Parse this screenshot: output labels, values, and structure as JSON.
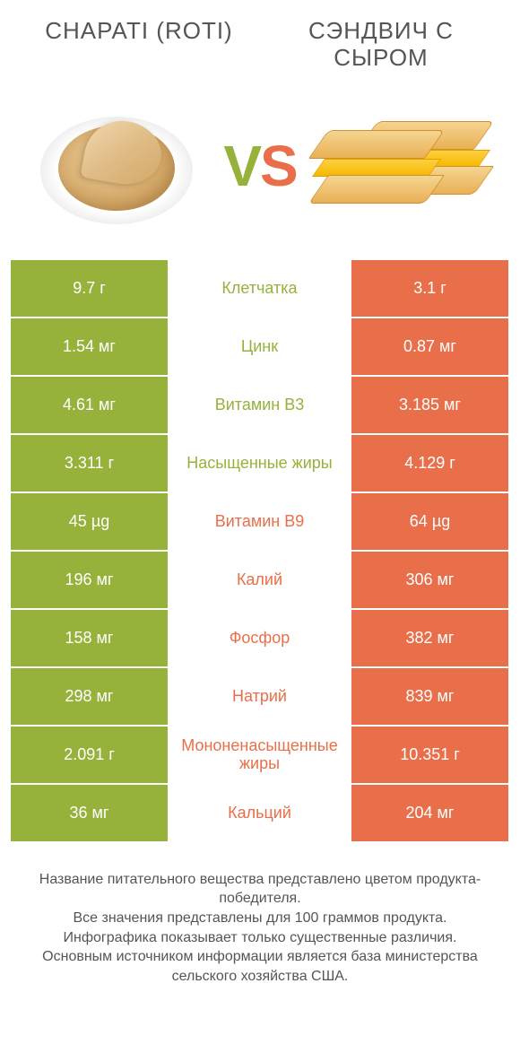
{
  "colors": {
    "left": "#96b23b",
    "right": "#e86f4a",
    "text": "#555555"
  },
  "header": {
    "left_title": "CHAPATI (ROTI)",
    "right_title": "СЭНДВИЧ С СЫРОМ",
    "vs_v": "V",
    "vs_s": "S"
  },
  "rows": [
    {
      "left": "9.7 г",
      "label": "Клетчатка",
      "right": "3.1 г",
      "winner": "left"
    },
    {
      "left": "1.54 мг",
      "label": "Цинк",
      "right": "0.87 мг",
      "winner": "left"
    },
    {
      "left": "4.61 мг",
      "label": "Витамин B3",
      "right": "3.185 мг",
      "winner": "left"
    },
    {
      "left": "3.311 г",
      "label": "Насыщенные жиры",
      "right": "4.129 г",
      "winner": "left"
    },
    {
      "left": "45 µg",
      "label": "Витамин B9",
      "right": "64 µg",
      "winner": "right"
    },
    {
      "left": "196 мг",
      "label": "Калий",
      "right": "306 мг",
      "winner": "right"
    },
    {
      "left": "158 мг",
      "label": "Фосфор",
      "right": "382 мг",
      "winner": "right"
    },
    {
      "left": "298 мг",
      "label": "Натрий",
      "right": "839 мг",
      "winner": "right"
    },
    {
      "left": "2.091 г",
      "label": "Мононенасыщенные жиры",
      "right": "10.351 г",
      "winner": "right"
    },
    {
      "left": "36 мг",
      "label": "Кальций",
      "right": "204 мг",
      "winner": "right"
    }
  ],
  "footer": {
    "line1": "Название питательного вещества представлено цветом продукта-победителя.",
    "line2": "Все значения представлены для 100 граммов продукта.",
    "line3": "Инфографика показывает только существенные различия.",
    "line4": "Основным источником информации является база министерства сельского хозяйства США."
  }
}
